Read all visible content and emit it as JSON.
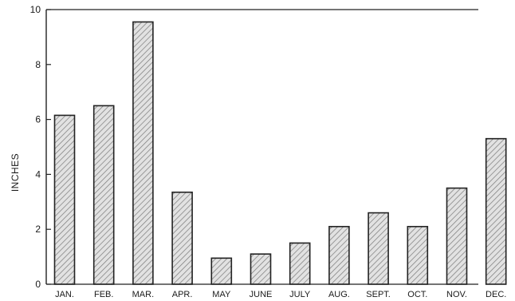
{
  "chart_data": {
    "type": "bar",
    "title": "",
    "xlabel": "",
    "ylabel": "INCHES",
    "categories": [
      "JAN.",
      "FEB.",
      "MAR.",
      "APR.",
      "MAY",
      "JUNE",
      "JULY",
      "AUG.",
      "SEPT.",
      "OCT.",
      "NOV.",
      "DEC."
    ],
    "values": [
      6.15,
      6.5,
      9.55,
      3.35,
      0.95,
      1.1,
      1.5,
      2.1,
      2.6,
      2.1,
      3.5,
      5.3
    ],
    "ylim": [
      0,
      10
    ],
    "yticks": [
      "0",
      "2",
      "4",
      "6",
      "8",
      "10"
    ],
    "grid": false,
    "bar_fill": "hatched",
    "colors": {
      "bar_fill": "#e2e2e2",
      "hatch": "#7a7a7a",
      "outline": "#222222",
      "axis": "#222222"
    }
  }
}
